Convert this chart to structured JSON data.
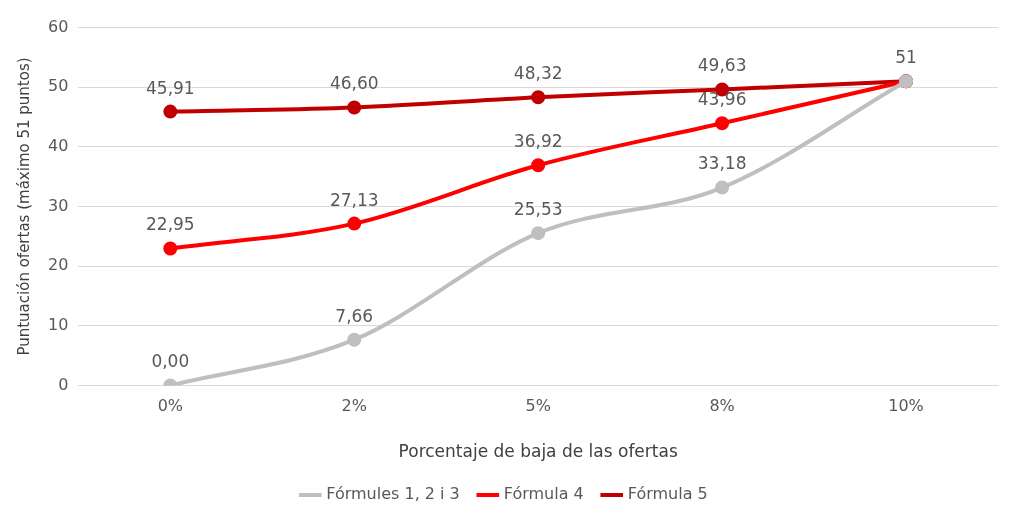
{
  "chart_data": {
    "type": "line",
    "xlabel": "Porcentaje de baja de las ofertas",
    "ylabel": "Puntuación ofertas (máximo 51 puntos)",
    "categories": [
      "0%",
      "2%",
      "5%",
      "8%",
      "10%"
    ],
    "series": [
      {
        "name": "Fórmules 1, 2 i 3",
        "color": "#bfbfbf",
        "values": [
          0,
          7.66,
          25.53,
          33.18,
          51
        ],
        "value_labels": [
          "0,00",
          "7,66",
          "25,53",
          "33,18",
          null
        ]
      },
      {
        "name": "Fórmula 4",
        "color": "#ff0000",
        "values": [
          22.95,
          27.13,
          36.92,
          43.96,
          51
        ],
        "value_labels": [
          "22,95",
          "27,13",
          "36,92",
          "43,96",
          null
        ]
      },
      {
        "name": "Fórmula 5",
        "color": "#c00000",
        "values": [
          45.91,
          46.6,
          48.32,
          49.63,
          51
        ],
        "value_labels": [
          "45,91",
          "46,60",
          "48,32",
          "49,63",
          "51"
        ]
      }
    ],
    "ylim": [
      0,
      60
    ],
    "yticks": [
      0,
      10,
      20,
      30,
      40,
      50,
      60
    ],
    "grid": "y",
    "legend": "bottom",
    "marker": "circle",
    "line_style": "solid"
  }
}
